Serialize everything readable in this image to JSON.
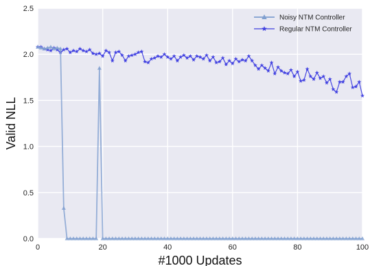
{
  "chart_data": {
    "type": "line",
    "xlabel": "#1000 Updates",
    "ylabel": "Valid NLL",
    "xlim": [
      0,
      100
    ],
    "ylim": [
      0,
      2.5
    ],
    "xticks": [
      0,
      20,
      40,
      60,
      80,
      100
    ],
    "yticks": [
      0.0,
      0.5,
      1.0,
      1.5,
      2.0,
      2.5
    ],
    "xtick_labels": [
      "0",
      "20",
      "40",
      "60",
      "80",
      "100"
    ],
    "ytick_labels": [
      "0.0",
      "0.5",
      "1.0",
      "1.5",
      "2.0",
      "2.5"
    ],
    "grid": true,
    "legend_position": "top-right",
    "background": "#e9e9f2",
    "series": [
      {
        "name": "Noisy NTM Controller",
        "marker": "triangle",
        "color": "#7f9fcf",
        "x": [
          0,
          1,
          2,
          3,
          4,
          5,
          6,
          7,
          8,
          9,
          10,
          11,
          12,
          13,
          14,
          15,
          16,
          17,
          18,
          19,
          20,
          21,
          22,
          23,
          24,
          25,
          26,
          27,
          28,
          29,
          30,
          31,
          32,
          33,
          34,
          35,
          36,
          37,
          38,
          39,
          40,
          41,
          42,
          43,
          44,
          45,
          46,
          47,
          48,
          49,
          50,
          51,
          52,
          53,
          54,
          55,
          56,
          57,
          58,
          59,
          60,
          61,
          62,
          63,
          64,
          65,
          66,
          67,
          68,
          69,
          70,
          71,
          72,
          73,
          74,
          75,
          76,
          77,
          78,
          79,
          80,
          81,
          82,
          83,
          84,
          85,
          86,
          87,
          88,
          89,
          90,
          91,
          92,
          93,
          94,
          95,
          96,
          97,
          98,
          99,
          100
        ],
        "y": [
          2.08,
          2.07,
          2.06,
          2.07,
          2.08,
          2.06,
          2.07,
          2.06,
          0.33,
          0,
          0,
          0,
          0,
          0,
          0,
          0,
          0,
          0,
          0,
          1.85,
          0,
          0,
          0,
          0,
          0,
          0,
          0,
          0,
          0,
          0,
          0,
          0,
          0,
          0,
          0,
          0,
          0,
          0,
          0,
          0,
          0,
          0,
          0,
          0,
          0,
          0,
          0,
          0,
          0,
          0,
          0,
          0,
          0,
          0,
          0,
          0,
          0,
          0,
          0,
          0,
          0,
          0,
          0,
          0,
          0,
          0,
          0,
          0,
          0,
          0,
          0,
          0,
          0,
          0,
          0,
          0,
          0,
          0,
          0,
          0,
          0,
          0,
          0,
          0,
          0,
          0,
          0,
          0,
          0,
          0,
          0,
          0,
          0,
          0,
          0,
          0,
          0,
          0,
          0,
          0,
          0
        ]
      },
      {
        "name": "Regular NTM Controller",
        "marker": "star",
        "color": "#3f3fe0",
        "x": [
          0,
          1,
          2,
          3,
          4,
          5,
          6,
          7,
          8,
          9,
          10,
          11,
          12,
          13,
          14,
          15,
          16,
          17,
          18,
          19,
          20,
          21,
          22,
          23,
          24,
          25,
          26,
          27,
          28,
          29,
          30,
          31,
          32,
          33,
          34,
          35,
          36,
          37,
          38,
          39,
          40,
          41,
          42,
          43,
          44,
          45,
          46,
          47,
          48,
          49,
          50,
          51,
          52,
          53,
          54,
          55,
          56,
          57,
          58,
          59,
          60,
          61,
          62,
          63,
          64,
          65,
          66,
          67,
          68,
          69,
          70,
          71,
          72,
          73,
          74,
          75,
          76,
          77,
          78,
          79,
          80,
          81,
          82,
          83,
          84,
          85,
          86,
          87,
          88,
          89,
          90,
          91,
          92,
          93,
          94,
          95,
          96,
          97,
          98,
          99,
          100
        ],
        "y": [
          2.08,
          2.08,
          2.06,
          2.05,
          2.04,
          2.07,
          2.05,
          2.02,
          2.05,
          2.06,
          2.02,
          2.04,
          2.03,
          2.06,
          2.04,
          2.03,
          2.05,
          2.01,
          2.0,
          2.01,
          1.98,
          2.04,
          2.02,
          1.93,
          2.02,
          2.03,
          1.99,
          1.93,
          1.98,
          1.99,
          2.0,
          2.02,
          2.03,
          1.92,
          1.91,
          1.95,
          1.96,
          1.98,
          1.97,
          2.0,
          1.97,
          1.95,
          1.98,
          1.93,
          1.97,
          1.99,
          1.96,
          1.98,
          1.94,
          1.98,
          1.97,
          1.95,
          1.99,
          1.93,
          1.97,
          1.91,
          1.92,
          1.96,
          1.89,
          1.93,
          1.9,
          1.95,
          1.92,
          1.94,
          1.93,
          1.98,
          1.93,
          1.88,
          1.84,
          1.88,
          1.85,
          1.82,
          1.91,
          1.79,
          1.86,
          1.82,
          1.8,
          1.79,
          1.83,
          1.76,
          1.81,
          1.71,
          1.72,
          1.84,
          1.76,
          1.73,
          1.8,
          1.74,
          1.76,
          1.69,
          1.73,
          1.62,
          1.59,
          1.7,
          1.7,
          1.76,
          1.79,
          1.64,
          1.65,
          1.7,
          1.55
        ]
      }
    ]
  }
}
